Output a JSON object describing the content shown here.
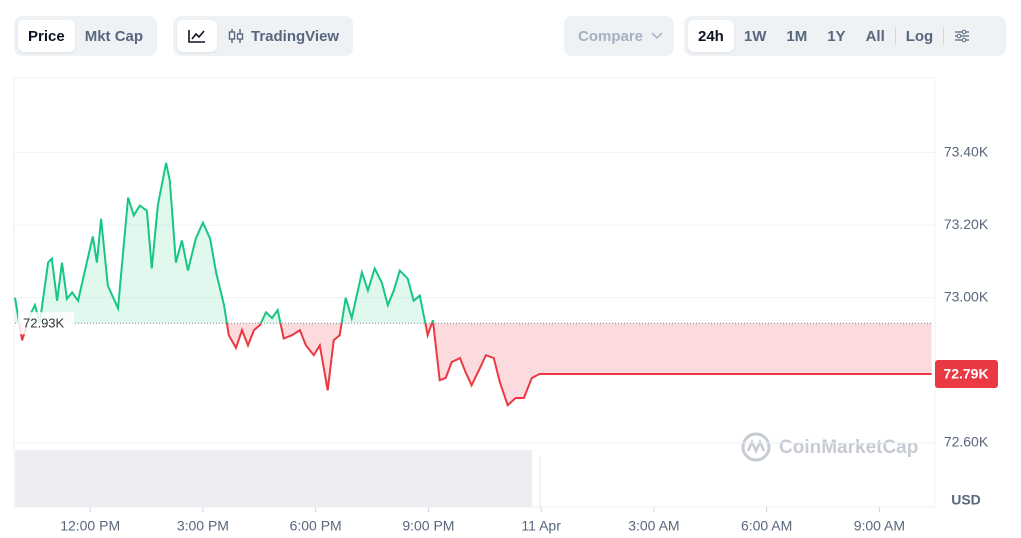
{
  "toolbar": {
    "view_tabs": [
      "Price",
      "Mkt Cap"
    ],
    "chart_tab": "TradingView",
    "compare": "Compare",
    "ranges": [
      "24h",
      "1W",
      "1M",
      "1Y",
      "All"
    ],
    "log": "Log"
  },
  "chart_data": {
    "type": "line",
    "x": [
      0,
      0.19,
      0.4,
      0.53,
      0.66,
      0.88,
      0.98,
      1.12,
      1.25,
      1.38,
      1.52,
      1.68,
      1.86,
      2.07,
      2.18,
      2.29,
      2.47,
      2.74,
      3.01,
      3.16,
      3.32,
      3.51,
      3.64,
      3.8,
      4.02,
      4.12,
      4.28,
      4.44,
      4.6,
      4.81,
      5.0,
      5.19,
      5.35,
      5.56,
      5.69,
      5.88,
      6.04,
      6.2,
      6.36,
      6.52,
      6.68,
      6.84,
      6.99,
      7.15,
      7.37,
      7.58,
      7.74,
      7.95,
      8.11,
      8.32,
      8.48,
      8.64,
      8.8,
      8.96,
      9.23,
      9.39,
      9.57,
      9.76,
      9.92,
      10.08,
      10.24,
      10.45,
      10.61,
      10.77,
      10.98,
      11.12,
      11.3,
      11.46,
      11.62,
      11.84,
      11.99,
      12.15,
      12.37,
      12.53,
      12.74,
      12.9,
      13.11,
      13.32,
      13.54,
      13.75,
      13.96,
      24.39
    ],
    "values": [
      73000,
      72883,
      72952,
      72980,
      72932,
      73097,
      73108,
      72992,
      73097,
      72997,
      73015,
      72992,
      73075,
      73169,
      73097,
      73218,
      73034,
      72971,
      73276,
      73227,
      73254,
      73240,
      73081,
      73254,
      73372,
      73323,
      73097,
      73158,
      73075,
      73163,
      73207,
      73163,
      73070,
      72980,
      72897,
      72862,
      72911,
      72869,
      72911,
      72925,
      72960,
      72944,
      72966,
      72888,
      72897,
      72911,
      72869,
      72842,
      72869,
      72745,
      72883,
      72897,
      73000,
      72944,
      73070,
      73020,
      73081,
      73042,
      72980,
      73020,
      73075,
      73053,
      72992,
      73006,
      72897,
      72938,
      72773,
      72779,
      72823,
      72834,
      72795,
      72759,
      72806,
      72842,
      72834,
      72768,
      72704,
      72724,
      72724,
      72779,
      72790,
      72790
    ],
    "xlim": [
      0,
      24.4
    ],
    "xticks": [
      {
        "value": 2,
        "label": "12:00 PM"
      },
      {
        "value": 5,
        "label": "3:00 PM"
      },
      {
        "value": 8,
        "label": "6:00 PM"
      },
      {
        "value": 11,
        "label": "9:00 PM"
      },
      {
        "value": 14,
        "label": "11 Apr"
      },
      {
        "value": 17,
        "label": "3:00 AM"
      },
      {
        "value": 20,
        "label": "6:00 AM"
      },
      {
        "value": 23,
        "label": "9:00 AM"
      }
    ],
    "ylim": [
      72600,
      73600
    ],
    "yticks": [
      {
        "value": 73400,
        "label": "73.40K"
      },
      {
        "value": 73200,
        "label": "73.20K"
      },
      {
        "value": 73000,
        "label": "73.00K"
      },
      {
        "value": 72600,
        "label": "72.60K"
      }
    ],
    "grid": true,
    "up_color": "#16c784",
    "down_color": "#ea3943",
    "reference": {
      "value": 72930,
      "label": "72.93K"
    },
    "current": {
      "value": 72790,
      "label": "72.79K"
    },
    "currency": "USD",
    "watermark": "CoinMarketCap"
  }
}
